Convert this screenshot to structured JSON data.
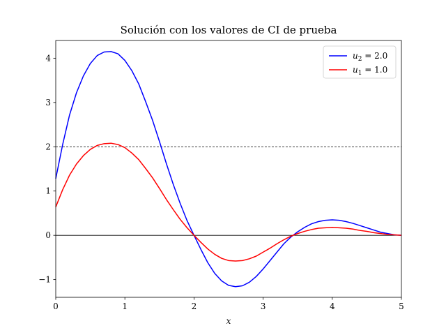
{
  "chart_data": {
    "type": "line",
    "title": "Solución con los valores de CI de prueba",
    "xlabel": "x",
    "ylabel": "",
    "xlim": [
      0,
      5
    ],
    "ylim": [
      -1.4,
      4.4
    ],
    "xticks": [
      0,
      1,
      2,
      3,
      4,
      5
    ],
    "yticks": [
      -1,
      0,
      1,
      2,
      3,
      4
    ],
    "xtick_labels": [
      "0",
      "1",
      "2",
      "3",
      "4",
      "5"
    ],
    "ytick_labels": [
      "−1",
      "0",
      "1",
      "2",
      "3",
      "4"
    ],
    "grid": false,
    "legend_position": "top-right",
    "reference_lines": [
      {
        "y": 2,
        "style": "dashed",
        "color": "#000000"
      },
      {
        "y": 0,
        "style": "solid",
        "color": "#000000"
      }
    ],
    "series": [
      {
        "name": "u2 = 2.0",
        "legend": {
          "var": "u",
          "sub": "2",
          "value": "= 2.0"
        },
        "color": "#0000ff",
        "x": [
          0,
          0.1,
          0.2,
          0.3,
          0.4,
          0.5,
          0.6,
          0.7,
          0.8,
          0.9,
          1.0,
          1.1,
          1.2,
          1.3,
          1.4,
          1.5,
          1.6,
          1.7,
          1.8,
          1.9,
          2.0,
          2.1,
          2.2,
          2.3,
          2.4,
          2.5,
          2.6,
          2.7,
          2.8,
          2.9,
          3.0,
          3.1,
          3.2,
          3.3,
          3.4,
          3.5,
          3.6,
          3.7,
          3.8,
          3.9,
          4.0,
          4.1,
          4.2,
          4.3,
          4.4,
          4.5,
          4.6,
          4.7,
          4.8,
          4.9,
          5.0
        ],
        "y": [
          1.28,
          2.05,
          2.72,
          3.22,
          3.6,
          3.88,
          4.06,
          4.14,
          4.15,
          4.1,
          3.95,
          3.72,
          3.42,
          3.02,
          2.6,
          2.12,
          1.62,
          1.15,
          0.72,
          0.33,
          0.0,
          -0.32,
          -0.62,
          -0.86,
          -1.03,
          -1.13,
          -1.16,
          -1.14,
          -1.06,
          -0.93,
          -0.76,
          -0.57,
          -0.38,
          -0.19,
          -0.04,
          0.08,
          0.18,
          0.26,
          0.31,
          0.34,
          0.35,
          0.34,
          0.31,
          0.27,
          0.22,
          0.17,
          0.12,
          0.07,
          0.04,
          0.01,
          0.0
        ]
      },
      {
        "name": "u1 = 1.0",
        "legend": {
          "var": "u",
          "sub": "1",
          "value": "= 1.0"
        },
        "color": "#ff0000",
        "x": [
          0,
          0.1,
          0.2,
          0.3,
          0.4,
          0.5,
          0.6,
          0.7,
          0.8,
          0.9,
          1.0,
          1.1,
          1.2,
          1.3,
          1.4,
          1.5,
          1.6,
          1.7,
          1.8,
          1.9,
          2.0,
          2.1,
          2.2,
          2.3,
          2.4,
          2.5,
          2.6,
          2.7,
          2.8,
          2.9,
          3.0,
          3.1,
          3.2,
          3.3,
          3.4,
          3.5,
          3.6,
          3.7,
          3.8,
          3.9,
          4.0,
          4.1,
          4.2,
          4.3,
          4.4,
          4.5,
          4.6,
          4.7,
          4.8,
          4.9,
          5.0
        ],
        "y": [
          0.64,
          1.03,
          1.36,
          1.61,
          1.8,
          1.94,
          2.03,
          2.07,
          2.08,
          2.05,
          1.98,
          1.86,
          1.71,
          1.51,
          1.3,
          1.06,
          0.81,
          0.58,
          0.36,
          0.17,
          0.0,
          -0.16,
          -0.31,
          -0.43,
          -0.52,
          -0.57,
          -0.58,
          -0.57,
          -0.53,
          -0.47,
          -0.38,
          -0.29,
          -0.19,
          -0.1,
          -0.02,
          0.04,
          0.09,
          0.13,
          0.16,
          0.17,
          0.18,
          0.17,
          0.16,
          0.14,
          0.11,
          0.09,
          0.06,
          0.04,
          0.02,
          0.01,
          0.0
        ]
      }
    ]
  }
}
